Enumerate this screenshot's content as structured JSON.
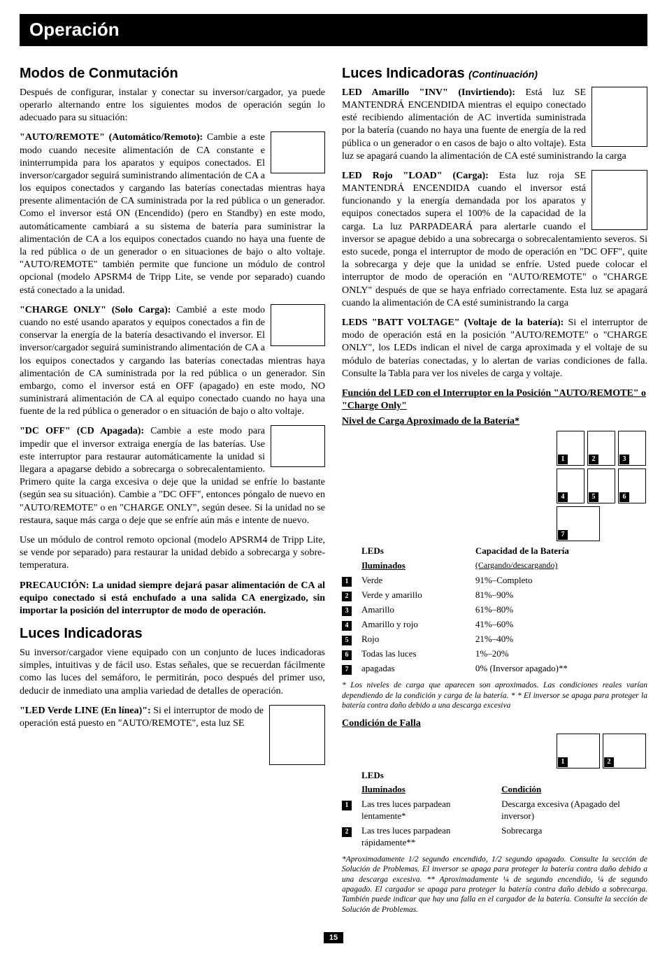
{
  "banner": "Operación",
  "left": {
    "h1": "Modos de Conmutación",
    "p1": "Después de configurar, instalar y conectar su inversor/cargador, ya puede operarlo alternando entre los siguientes modos de operación según lo adecuado para su situación:",
    "m1_lead": "\"AUTO/REMOTE\" (Automático/Remoto):",
    "m1_body": " Cambie a este modo cuando necesite alimentación de CA constante e ininterrumpida para los aparatos y equipos conectados. El inversor/cargador seguirá suministrando alimentación de CA a los equipos conectados y cargando las baterías conectadas mientras haya presente alimentación de CA suministrada por la red pública o un generador. Como el inversor está ON (Encendido) (pero en Standby) en este modo, automáticamente cambiará a su sistema de batería para suministrar la alimentación de CA a los equipos conectados cuando no haya una fuente de la red pública o de un generador o en situaciones de bajo o alto voltaje. \"AUTO/REMOTE\" también permite que funcione un módulo de control opcional (modelo APSRM4 de Tripp Lite, se vende por separado) cuando está conectado a la unidad.",
    "m2_lead": "\"CHARGE ONLY\" (Solo Carga):",
    "m2_body": " Cambié a este modo cuando no esté usando aparatos y equipos conectados a fin de conservar la energía de la batería desactivando el inversor. El inversor/cargador seguirá suministrando alimentación de CA a los equipos conectados y cargando las baterías conectadas mientras haya alimentación de CA suministrada por la red pública o un generador. Sin embargo, como el inversor está en OFF (apagado) en este modo, NO suministrará alimentación de CA al equipo conectado cuando no haya una fuente de la red pública o generador o en situación de bajo o alto voltaje.",
    "m3_lead": "\"DC OFF\" (CD Apagada):",
    "m3_body": " Cambie a este modo para impedir que el inversor extraiga energía de las baterías. Use este interruptor para restaurar automáticamente la unidad si llegara a apagarse debido a sobrecarga o sobrecalentamiento. Primero quite la carga excesiva o deje que la unidad se enfríe lo bastante (según sea su situación). Cambie a \"DC OFF\", entonces póngalo de nuevo en \"AUTO/REMOTE\" o en \"CHARGE ONLY\", según desee. Si la unidad no se restaura, saque más carga o deje que se enfríe aún más e intente de nuevo.",
    "p2": "Use un módulo de control remoto opcional (modelo APSRM4 de Tripp Lite, se vende por separado) para restaurar la unidad debido a sobrecarga y sobre-temperatura.",
    "p3": "PRECAUCIÓN: La unidad siempre dejará pasar alimentación de CA al equipo conectado si está enchufado a una salida CA energizado, sin importar la posición del interruptor de modo de operación.",
    "h2": "Luces Indicadoras",
    "p4": "Su inversor/cargador viene equipado con un conjunto de luces indicadoras simples, intuitivas y de fácil uso. Estas señales, que se recuerdan fácilmente como las luces del semáforo, le permitirán, poco después del primer uso, deducir de inmediato una amplia  variedad de detalles de operación.",
    "m4_lead": "\"LED Verde LINE (En línea)\":",
    "m4_body": " Si el interruptor de modo de operación está puesto en \"AUTO/REMOTE\", esta luz SE"
  },
  "right": {
    "h1_a": "Luces Indicadoras ",
    "h1_b": "(Continuación)",
    "m1_lead": "LED Amarillo \"INV\" (Invirtiendo):",
    "m1_body": " Está luz SE MANTENDRÁ ENCENDIDA mientras el equipo conectado esté recibiendo alimentación de AC invertida suministrada por la batería (cuando no haya una fuente de energía de la red pública o un generador o en casos de bajo o alto voltaje). Esta luz se apagará cuando la alimentación de CA esté suministrando la carga",
    "m2_lead": "LED Rojo \"LOAD\" (Carga):",
    "m2_body": " Esta luz roja SE MANTENDRÁ ENCENDIDA cuando el inversor está funcionando y la energía demandada por los aparatos y equipos conectados supera el 100% de la capacidad de la carga. La luz PARPADEARÁ para alertarle cuando el inversor se apague debido a una sobrecarga o sobrecalentamiento severos. Si esto sucede, ponga el interruptor de modo de operación en \"DC OFF\", quite la sobrecarga y deje que la unidad se enfríe. Usted puede colocar el interruptor de modo de operación en \"AUTO/REMOTE\" o \"CHARGE ONLY\" después de que se haya enfriado correctamente. Esta luz se apagará cuando la alimentación de CA esté suministrando la carga",
    "m3_lead": "LEDS \"BATT VOLTAGE\" (Voltaje de la batería):",
    "m3_body": " Si el interruptor de modo de operación está en la posición \"AUTO/REMOTE\" o \"CHARGE ONLY\", los LEDs indican el nivel de carga aproximada y el voltaje de su módulo de baterías conectadas, y lo alertan de varias condiciones de falla. Consulte la Tabla para ver los niveles de carga y voltaje.",
    "sub1": "Función del LED con el Interruptor en la Posición \"AUTO/REMOTE\" o \"Charge Only\"",
    "sub2": "Nivel de Carga Aproximado de la Batería*",
    "table1": {
      "h_leds": "LEDs",
      "h_ilum": "Iluminados",
      "h_cap": "Capacidad de la Batería",
      "h_cap_sub": "(Cargando/descargando)",
      "rows": [
        {
          "n": "1",
          "l": "Verde",
          "c": "91%–Completo"
        },
        {
          "n": "2",
          "l": "Verde y amarillo",
          "c": "81%–90%"
        },
        {
          "n": "3",
          "l": "Amarillo",
          "c": "61%–80%"
        },
        {
          "n": "4",
          "l": "Amarillo y rojo",
          "c": "41%–60%"
        },
        {
          "n": "5",
          "l": "Rojo",
          "c": "21%–40%"
        },
        {
          "n": "6",
          "l": "Todas las luces",
          "c": "1%–20%"
        },
        {
          "n": "7",
          "l": "apagadas",
          "c": "0% (Inversor apagado)**"
        }
      ]
    },
    "foot1": "* Los niveles de carga que aparecen son aproximados. Las condiciones reales varían dependiendo de la condición y carga de la batería. * * El inversor se apaga para proteger la batería contra daño debido a una descarga excesiva",
    "sub3": "Condición de Falla",
    "table2": {
      "h_leds": "LEDs",
      "h_ilum": "Iluminados",
      "h_cond": "Condición",
      "rows": [
        {
          "n": "1",
          "l": "Las tres luces parpadean lentamente*",
          "c": "Descarga excesiva (Apagado del inversor)"
        },
        {
          "n": "2",
          "l": "Las tres luces parpadean rápidamente**",
          "c": "Sobrecarga"
        }
      ]
    },
    "foot2": "*Aproximadamente 1/2 segundo encendido, 1/2 segundo apagado. Consulte la sección de Solución de Problemas.  El inversor se apaga para proteger la batería contra daño debido a una descarga excesiva. ** Aproximadamente ¼ de segundo encendido, ¼ de segundo apagado.  El cargador se apaga para proteger la batería contra daño debido a sobrecarga. También puede indicar que hay una falla en el cargador de la batería. Consulte la sección de Solución de Problemas."
  },
  "pagenum": "15"
}
